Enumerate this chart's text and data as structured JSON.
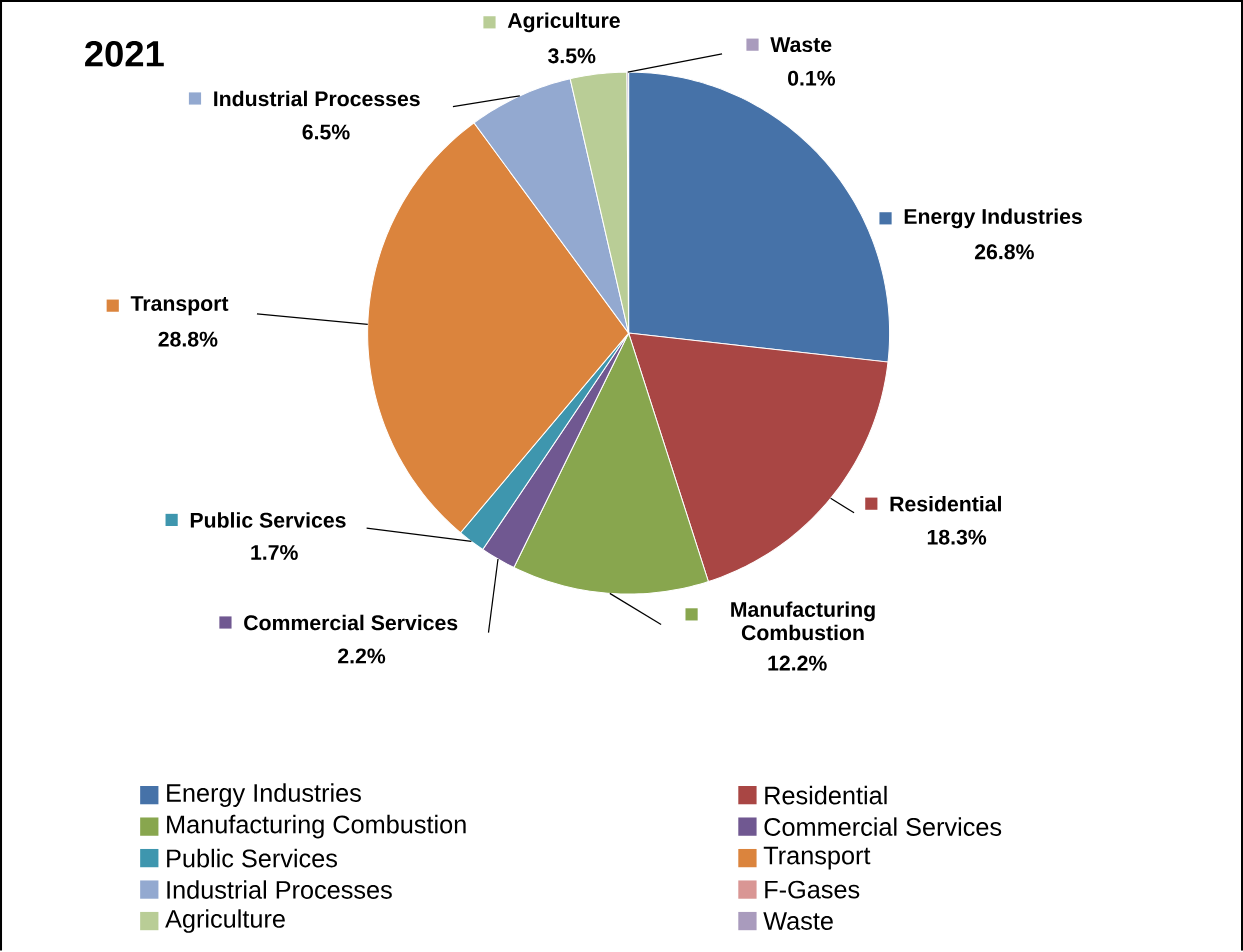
{
  "chart_data": {
    "type": "pie",
    "title": "2021",
    "categories": [
      "Energy Industries",
      "Residential",
      "Manufacturing Combustion",
      "Commercial Services",
      "Public Services",
      "Transport",
      "Industrial Processes",
      "F-Gases",
      "Agriculture",
      "Waste"
    ],
    "values": [
      26.8,
      18.3,
      12.2,
      2.2,
      1.7,
      28.8,
      6.5,
      0,
      3.5,
      0.1
    ],
    "value_labels": [
      "26.8%",
      "18.3%",
      "12.2%",
      "2.2%",
      "1.7%",
      "28.8%",
      "6.5%",
      null,
      "3.5%",
      "0.1%"
    ],
    "colors": [
      "#4672a8",
      "#a94644",
      "#88a64e",
      "#705891",
      "#3e96ae",
      "#db843d",
      "#93a9d0",
      "#d99694",
      "#b9cd96",
      "#a99bbd"
    ],
    "legend": "bottom"
  }
}
